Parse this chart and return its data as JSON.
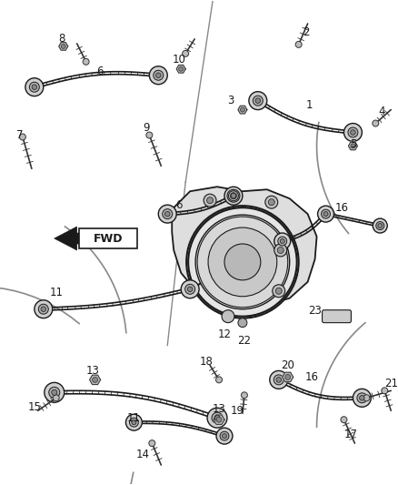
{
  "background_color": "#ffffff",
  "line_color": "#1a1a1a",
  "gray_color": "#888888",
  "light_gray": "#cccccc",
  "fig_width": 4.38,
  "fig_height": 5.33,
  "dpi": 100,
  "arm_color": "#2a2a2a",
  "knuckle_fill": "#e5e5e5",
  "hub_fill": "#d8d8d8",
  "bolt_color": "#333333"
}
